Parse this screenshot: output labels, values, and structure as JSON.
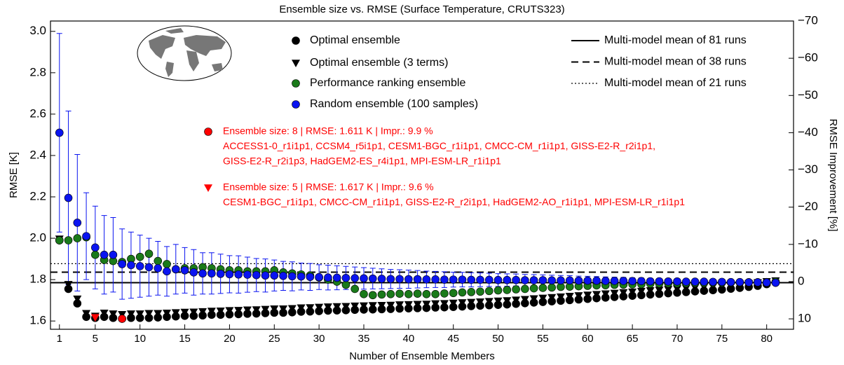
{
  "chart_data": {
    "type": "scatter",
    "title": "Ensemble size vs. RMSE (Surface Temperature, CRUTS323)",
    "xlabel": "Number of Ensemble Members",
    "ylabel": "RMSE [K]",
    "y2label": "RMSE Improvement [%]",
    "xlim": [
      0,
      83
    ],
    "xticks": [
      1,
      5,
      10,
      15,
      20,
      25,
      30,
      35,
      40,
      45,
      50,
      55,
      60,
      65,
      70,
      75,
      80
    ],
    "ylim": [
      1.56,
      3.05
    ],
    "yticks": [
      1.6,
      1.8,
      {
        "value": 2.0,
        "label": "2.0"
      },
      2.2,
      2.4,
      2.6,
      2.8,
      {
        "value": 3.0,
        "label": "3.0"
      }
    ],
    "y2lim": [
      12.8,
      -70
    ],
    "y2ticks": [
      {
        "value": -70,
        "label": "−70"
      },
      {
        "value": -60,
        "label": "−60"
      },
      {
        "value": -50,
        "label": "−50"
      },
      {
        "value": -40,
        "label": "−40"
      },
      {
        "value": -30,
        "label": "−30"
      },
      {
        "value": -20,
        "label": "−20"
      },
      {
        "value": -10,
        "label": "−10"
      },
      0,
      10
    ],
    "x": [
      1,
      2,
      3,
      4,
      5,
      6,
      7,
      8,
      9,
      10,
      11,
      12,
      13,
      14,
      15,
      16,
      17,
      18,
      19,
      20,
      21,
      22,
      23,
      24,
      25,
      26,
      27,
      28,
      29,
      30,
      31,
      32,
      33,
      34,
      35,
      36,
      37,
      38,
      39,
      40,
      41,
      42,
      43,
      44,
      45,
      46,
      47,
      48,
      49,
      50,
      51,
      52,
      53,
      54,
      55,
      56,
      57,
      58,
      59,
      60,
      61,
      62,
      63,
      64,
      65,
      66,
      67,
      68,
      69,
      70,
      71,
      72,
      73,
      74,
      75,
      76,
      77,
      78,
      79,
      80,
      81
    ],
    "series": [
      {
        "name": "Optimal ensemble",
        "marker": "circle",
        "color": "#000000",
        "values": [
          1.99,
          1.755,
          1.685,
          1.62,
          1.615,
          1.62,
          1.615,
          1.611,
          1.615,
          1.615,
          1.615,
          1.617,
          1.62,
          1.622,
          1.625,
          1.625,
          1.627,
          1.63,
          1.63,
          1.632,
          1.633,
          1.635,
          1.636,
          1.638,
          1.64,
          1.64,
          1.642,
          1.645,
          1.646,
          1.648,
          1.65,
          1.651,
          1.652,
          1.654,
          1.655,
          1.656,
          1.657,
          1.658,
          1.66,
          1.661,
          1.662,
          1.663,
          1.665,
          1.666,
          1.668,
          1.67,
          1.672,
          1.674,
          1.676,
          1.678,
          1.68,
          1.683,
          1.686,
          1.689,
          1.692,
          1.695,
          1.698,
          1.701,
          1.704,
          1.707,
          1.71,
          1.713,
          1.716,
          1.719,
          1.722,
          1.725,
          1.728,
          1.731,
          1.734,
          1.737,
          1.74,
          1.743,
          1.746,
          1.749,
          1.752,
          1.756,
          1.76,
          1.765,
          1.77,
          1.778,
          1.785
        ]
      },
      {
        "name": "Optimal ensemble (3 terms)",
        "marker": "triangle",
        "color": "#000000",
        "values": [
          1.99,
          1.77,
          1.7,
          1.63,
          1.617,
          1.632,
          1.628,
          1.625,
          1.628,
          1.628,
          1.63,
          1.63,
          1.632,
          1.634,
          1.636,
          1.637,
          1.639,
          1.641,
          1.642,
          1.644,
          1.645,
          1.647,
          1.648,
          1.65,
          1.652,
          1.652,
          1.654,
          1.657,
          1.658,
          1.66,
          1.662,
          1.663,
          1.664,
          1.666,
          1.667,
          1.668,
          1.669,
          1.67,
          1.672,
          1.673,
          1.674,
          1.675,
          1.677,
          1.678,
          1.68,
          1.682,
          1.684,
          1.686,
          1.688,
          1.69,
          1.692,
          1.695,
          1.698,
          1.701,
          1.704,
          1.707,
          1.71,
          1.713,
          1.716,
          1.719,
          1.722,
          1.725,
          1.728,
          1.731,
          1.734,
          1.737,
          1.74,
          1.743,
          1.746,
          1.749,
          1.752,
          1.755,
          1.758,
          1.761,
          1.764,
          1.767,
          1.771,
          1.775,
          1.779,
          1.784,
          1.788
        ]
      },
      {
        "name": "Performance ranking ensemble",
        "marker": "circle",
        "color": "#1a7a1a",
        "values": [
          1.99,
          1.99,
          2.0,
          2.005,
          1.92,
          1.895,
          1.89,
          1.885,
          1.9,
          1.91,
          1.925,
          1.89,
          1.875,
          1.85,
          1.855,
          1.855,
          1.86,
          1.855,
          1.85,
          1.845,
          1.845,
          1.84,
          1.84,
          1.84,
          1.845,
          1.835,
          1.83,
          1.825,
          1.82,
          1.81,
          1.8,
          1.79,
          1.775,
          1.755,
          1.73,
          1.725,
          1.728,
          1.73,
          1.732,
          1.73,
          1.732,
          1.73,
          1.73,
          1.733,
          1.735,
          1.738,
          1.74,
          1.742,
          1.745,
          1.748,
          1.75,
          1.753,
          1.755,
          1.758,
          1.76,
          1.762,
          1.765,
          1.766,
          1.768,
          1.77,
          1.772,
          1.773,
          1.775,
          1.776,
          1.777,
          1.778,
          1.78,
          1.781,
          1.782,
          1.782,
          1.783,
          1.784,
          1.784,
          1.785,
          1.785,
          1.786,
          1.786,
          1.787,
          1.787,
          1.788,
          1.79
        ]
      },
      {
        "name": "Random ensemble (100 samples)",
        "marker": "circle",
        "color": "#0a14f0",
        "values": [
          2.51,
          2.195,
          2.075,
          2.01,
          1.955,
          1.92,
          1.92,
          1.875,
          1.87,
          1.865,
          1.86,
          1.855,
          1.84,
          1.85,
          1.845,
          1.835,
          1.83,
          1.83,
          1.828,
          1.826,
          1.825,
          1.824,
          1.822,
          1.82,
          1.82,
          1.818,
          1.816,
          1.815,
          1.813,
          1.812,
          1.81,
          1.809,
          1.808,
          1.807,
          1.806,
          1.805,
          1.804,
          1.803,
          1.803,
          1.802,
          1.802,
          1.801,
          1.801,
          1.8,
          1.8,
          1.8,
          1.799,
          1.799,
          1.799,
          1.798,
          1.798,
          1.798,
          1.797,
          1.797,
          1.797,
          1.796,
          1.796,
          1.796,
          1.795,
          1.795,
          1.795,
          1.794,
          1.794,
          1.794,
          1.793,
          1.793,
          1.792,
          1.792,
          1.791,
          1.791,
          1.79,
          1.79,
          1.79,
          1.789,
          1.789,
          1.788,
          1.788,
          1.787,
          1.787,
          1.786,
          1.785
        ],
        "errors": [
          0.48,
          0.42,
          0.33,
          0.21,
          0.2,
          0.19,
          0.18,
          0.17,
          0.16,
          0.15,
          0.14,
          0.13,
          0.12,
          0.12,
          0.11,
          0.11,
          0.1,
          0.1,
          0.095,
          0.09,
          0.09,
          0.085,
          0.08,
          0.08,
          0.075,
          0.07,
          0.07,
          0.065,
          0.065,
          0.06,
          0.06,
          0.058,
          0.056,
          0.054,
          0.052,
          0.05,
          0.048,
          0.046,
          0.045,
          0.044,
          0.042,
          0.04,
          0.039,
          0.038,
          0.036,
          0.035,
          0.034,
          0.033,
          0.032,
          0.031,
          0.03,
          0.029,
          0.028,
          0.027,
          0.026,
          0.025,
          0.024,
          0.023,
          0.022,
          0.021,
          0.02,
          0.019,
          0.018,
          0.017,
          0.016,
          0.015,
          0.014,
          0.013,
          0.012,
          0.011,
          0.01,
          0.009,
          0.008,
          0.007,
          0.006,
          0.005,
          0.004,
          0.003,
          0.002,
          0.001,
          0
        ]
      }
    ],
    "reference_lines": [
      {
        "name": "Multi-model mean of 81 runs",
        "value": 1.785,
        "style": "solid"
      },
      {
        "name": "Multi-model mean of 38 runs",
        "value": 1.836,
        "style": "dashed"
      },
      {
        "name": "Multi-model mean of 21 runs",
        "value": 1.877,
        "style": "dotted"
      }
    ],
    "highlights": [
      {
        "x": 8,
        "y": 1.611,
        "marker": "circle",
        "color": "#ff0000",
        "lines": [
          "Ensemble size: 8 | RMSE: 1.611 K | Impr.: 9.9 %",
          "ACCESS1-0_r1i1p1, CCSM4_r5i1p1, CESM1-BGC_r1i1p1, CMCC-CM_r1i1p1, GISS-E2-R_r2i1p1,",
          "GISS-E2-R_r2i1p3, HadGEM2-ES_r4i1p1, MPI-ESM-LR_r1i1p1"
        ]
      },
      {
        "x": 5,
        "y": 1.617,
        "marker": "triangle",
        "color": "#ff0000",
        "lines": [
          "Ensemble size: 5 | RMSE: 1.617 K | Impr.: 9.6 %",
          "CESM1-BGC_r1i1p1, CMCC-CM_r1i1p1, GISS-E2-R_r2i1p1, HadGEM2-AO_r1i1p1, MPI-ESM-LR_r1i1p1"
        ]
      }
    ]
  }
}
